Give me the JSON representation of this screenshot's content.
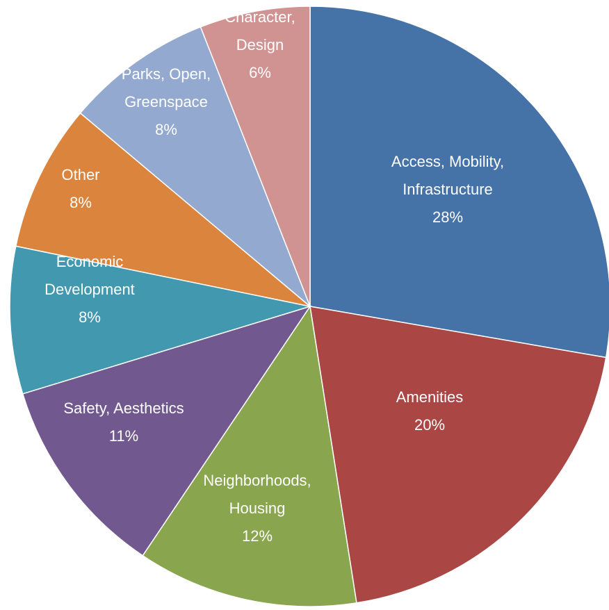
{
  "chart_data": {
    "type": "pie",
    "title": "",
    "start_angle_deg": 0,
    "direction": "clockwise",
    "slices": [
      {
        "name": "Access, Mobility, Infrastructure",
        "label_lines": [
          "Access, Mobility,",
          "Infrastructure"
        ],
        "value": 28,
        "value_label": "28%",
        "color": "#4572A7"
      },
      {
        "name": "Amenities",
        "label_lines": [
          "Amenities"
        ],
        "value": 20,
        "value_label": "20%",
        "color": "#AA4643"
      },
      {
        "name": "Neighborhoods, Housing",
        "label_lines": [
          "Neighborhoods,",
          "Housing"
        ],
        "value": 12,
        "value_label": "12%",
        "color": "#89A54E"
      },
      {
        "name": "Safety, Aesthetics",
        "label_lines": [
          "Safety, Aesthetics"
        ],
        "value": 11,
        "value_label": "11%",
        "color": "#71588F"
      },
      {
        "name": "Economic Development",
        "label_lines": [
          "Economic",
          "Development"
        ],
        "value": 8,
        "value_label": "8%",
        "color": "#4198AF"
      },
      {
        "name": "Other",
        "label_lines": [
          "Other"
        ],
        "value": 8,
        "value_label": "8%",
        "color": "#DB843D"
      },
      {
        "name": "Parks, Open, Greenspace",
        "label_lines": [
          "Parks, Open,",
          "Greenspace"
        ],
        "value": 8,
        "value_label": "8%",
        "color": "#93A9CF"
      },
      {
        "name": "Character, Design",
        "label_lines": [
          "Character,",
          "Design"
        ],
        "value": 6,
        "value_label": "6%",
        "color": "#D19392"
      }
    ]
  }
}
